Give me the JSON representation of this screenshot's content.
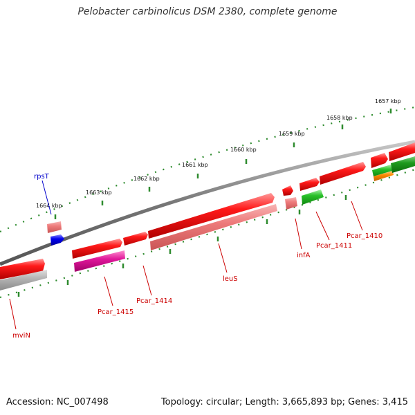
{
  "header": {
    "title": "Pelobacter carbinolicus DSM 2380, complete genome"
  },
  "footer": {
    "accession": "Accession: NC_007498",
    "summary": "Topology: circular; Length: 3,665,893 bp; Genes: 3,415"
  },
  "scale": {
    "unit": "kbp",
    "ticks": [
      {
        "kbp": 1657,
        "label": "1657 kbp"
      },
      {
        "kbp": 1658,
        "label": "1658 kbp"
      },
      {
        "kbp": 1659,
        "label": "1659 kbp"
      },
      {
        "kbp": 1660,
        "label": "1660 kbp"
      },
      {
        "kbp": 1661,
        "label": "1661 kbp"
      },
      {
        "kbp": 1662,
        "label": "1662 kbp"
      },
      {
        "kbp": 1663,
        "label": "1663 kbp"
      },
      {
        "kbp": 1664,
        "label": "1664 kbp"
      }
    ]
  },
  "genes": [
    {
      "name": "mviN",
      "color": "#cc0000"
    },
    {
      "name": "Pcar_1415",
      "color": "#cc0000"
    },
    {
      "name": "Pcar_1414",
      "color": "#cc0000"
    },
    {
      "name": "leuS",
      "color": "#cc0000"
    },
    {
      "name": "infA",
      "color": "#cc0000"
    },
    {
      "name": "Pcar_1411",
      "color": "#cc0000"
    },
    {
      "name": "Pcar_1410",
      "color": "#cc0000"
    },
    {
      "name": "rpsT",
      "color": "#0000cc"
    }
  ],
  "colors": {
    "backbone": "#777777",
    "tick": "#2e8b2e",
    "cds": "#ee1111",
    "rna_light": "#ee7777",
    "pink": "#dd1199",
    "gray": "#aaaaaa",
    "green": "#22bb22",
    "orange": "#ff8800",
    "blue": "#0000ee"
  }
}
